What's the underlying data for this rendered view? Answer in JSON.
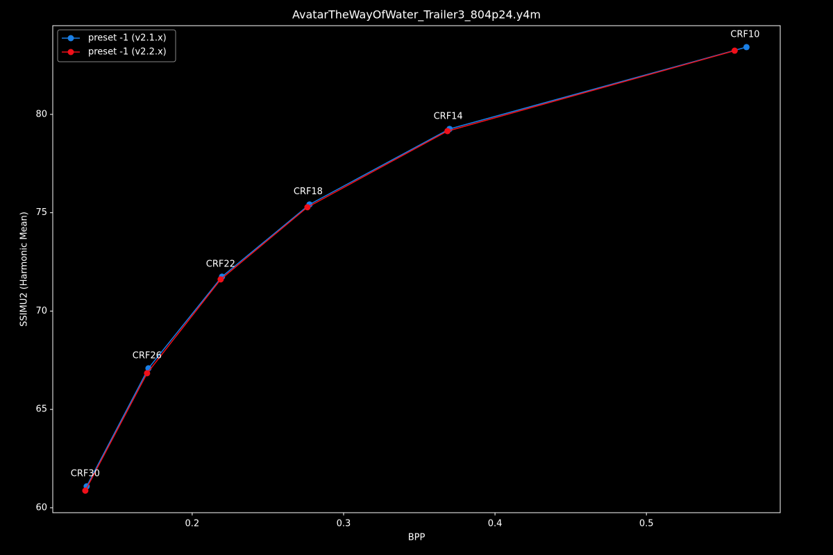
{
  "chart_data": {
    "type": "line",
    "title": "AvatarTheWayOfWater_Trailer3_804p24.y4m",
    "x_label": "BPP",
    "y_label": "SSIMU2 (Harmonic Mean)",
    "series": [
      {
        "name": "preset -1 (v2.1.x)",
        "color": "#1a7fe6",
        "x": [
          0.1303,
          0.1711,
          0.2197,
          0.2775,
          0.37,
          0.5661
        ],
        "values": [
          61.09,
          67.09,
          71.75,
          75.42,
          79.26,
          83.42
        ]
      },
      {
        "name": "preset -1 (v2.2.x)",
        "color": "#f0101a",
        "x": [
          0.1294,
          0.1702,
          0.2188,
          0.2761,
          0.3686,
          0.5583
        ],
        "values": [
          60.87,
          66.84,
          71.61,
          75.28,
          79.15,
          83.24
        ]
      }
    ],
    "annotations": [
      "CRF30",
      "CRF26",
      "CRF22",
      "CRF18",
      "CRF14",
      "CRF10"
    ],
    "xlim": [
      0.1079,
      0.5884
    ],
    "xticks": [
      0.2,
      0.3,
      0.4,
      0.5
    ],
    "ylim": [
      59.75,
      84.51
    ],
    "yticks": [
      60,
      65,
      70,
      75,
      80
    ],
    "grid": false,
    "legend": "upper-left"
  }
}
